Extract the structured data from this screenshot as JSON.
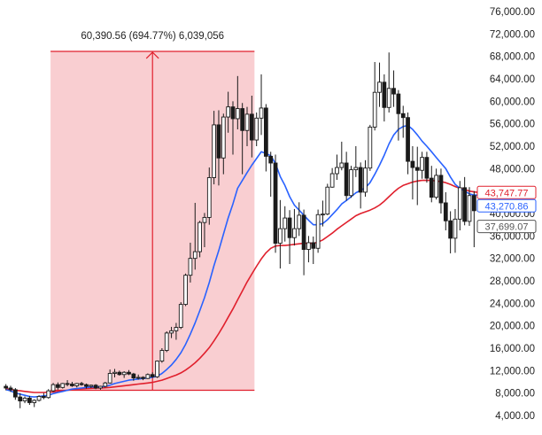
{
  "chart_data": {
    "type": "candlestick",
    "ylim": [
      3000,
      77000
    ],
    "y_ticks": [
      76000,
      72000,
      68000,
      64000,
      60000,
      56000,
      52000,
      48000,
      44000,
      40000,
      36000,
      32000,
      28000,
      24000,
      20000,
      16000,
      12000,
      8000,
      4000
    ],
    "y_tick_labels": [
      "76,000.00",
      "72,000.00",
      "68,000.00",
      "64,000.00",
      "60,000.00",
      "56,000.00",
      "52,000.00",
      "48,000.00",
      "44,000.00",
      "40,000.00",
      "36,000.00",
      "32,000.00",
      "28,000.00",
      "24,000.00",
      "20,000.00",
      "16,000.00",
      "12,000.00",
      "8,000.00",
      "4,000.00"
    ],
    "grid": false,
    "colors": {
      "up": "#ffffff",
      "down": "#1a1a1a",
      "outline": "#1a1a1a",
      "ema_blue": "#2962ff",
      "ma_red": "#e0202d",
      "measure_fill": "#f7b9bd",
      "measure_line": "#e0202d"
    },
    "candles": [
      [
        9200,
        9600,
        8500,
        8900
      ],
      [
        8900,
        9300,
        8200,
        8600
      ],
      [
        8600,
        8900,
        6800,
        7300
      ],
      [
        7300,
        8000,
        5300,
        6600
      ],
      [
        6600,
        7400,
        6200,
        7100
      ],
      [
        7100,
        7500,
        5900,
        6300
      ],
      [
        6300,
        6900,
        5500,
        6700
      ],
      [
        6700,
        7600,
        6500,
        7400
      ],
      [
        7400,
        8000,
        6900,
        7200
      ],
      [
        7200,
        8700,
        7000,
        8400
      ],
      [
        8400,
        9800,
        8200,
        9500
      ],
      [
        9500,
        9900,
        8600,
        9000
      ],
      [
        9000,
        9800,
        8800,
        9700
      ],
      [
        9700,
        10300,
        9200,
        9600
      ],
      [
        9600,
        10000,
        9100,
        9300
      ],
      [
        9300,
        9800,
        9000,
        9700
      ],
      [
        9700,
        10000,
        9300,
        9500
      ],
      [
        9500,
        9700,
        8800,
        9200
      ],
      [
        9200,
        9500,
        8900,
        9400
      ],
      [
        9400,
        9600,
        8700,
        8900
      ],
      [
        8900,
        9300,
        8600,
        9200
      ],
      [
        9200,
        10000,
        9000,
        9800
      ],
      [
        9800,
        12200,
        9700,
        11500
      ],
      [
        11500,
        12300,
        10800,
        11700
      ],
      [
        11700,
        12000,
        11100,
        11300
      ],
      [
        11300,
        11900,
        10700,
        11700
      ],
      [
        11700,
        12100,
        11200,
        11400
      ],
      [
        11400,
        11600,
        10200,
        10700
      ],
      [
        10700,
        11300,
        10400,
        10800
      ],
      [
        10800,
        11000,
        10300,
        10600
      ],
      [
        10600,
        11500,
        10500,
        11300
      ],
      [
        11300,
        11700,
        10700,
        10900
      ],
      [
        10900,
        13800,
        10700,
        13700
      ],
      [
        13700,
        16000,
        13400,
        15600
      ],
      [
        15600,
        19000,
        15300,
        18700
      ],
      [
        18700,
        19800,
        17800,
        19100
      ],
      [
        19100,
        20500,
        17500,
        19700
      ],
      [
        19700,
        24200,
        19400,
        23800
      ],
      [
        23800,
        29300,
        23500,
        29000
      ],
      [
        29000,
        34800,
        27700,
        32000
      ],
      [
        32000,
        41900,
        30000,
        33200
      ],
      [
        33200,
        38700,
        32200,
        38400
      ],
      [
        38400,
        40100,
        34000,
        39300
      ],
      [
        39300,
        48200,
        38000,
        46400
      ],
      [
        46400,
        58300,
        45200,
        55800
      ],
      [
        55800,
        58400,
        45000,
        49900
      ],
      [
        49900,
        57800,
        47000,
        57200
      ],
      [
        57200,
        61700,
        54400,
        59000
      ],
      [
        59000,
        60000,
        50500,
        56900
      ],
      [
        56900,
        64500,
        55000,
        58700
      ],
      [
        58700,
        59700,
        47000,
        54800
      ],
      [
        54800,
        59000,
        52000,
        57700
      ],
      [
        57700,
        61000,
        50000,
        53100
      ],
      [
        53100,
        58000,
        52000,
        57000
      ],
      [
        57000,
        64800,
        54000,
        58800
      ],
      [
        58800,
        59500,
        47500,
        50200
      ],
      [
        50200,
        51000,
        43000,
        49000
      ],
      [
        49000,
        50500,
        33000,
        34700
      ],
      [
        34700,
        42400,
        30200,
        37300
      ],
      [
        37300,
        41300,
        35000,
        39200
      ],
      [
        39200,
        40600,
        31000,
        35700
      ],
      [
        35700,
        40800,
        34300,
        37300
      ],
      [
        37300,
        42000,
        36000,
        39700
      ],
      [
        39700,
        40700,
        29000,
        33600
      ],
      [
        33600,
        36000,
        31300,
        34800
      ],
      [
        34800,
        35900,
        31000,
        33800
      ],
      [
        33800,
        40700,
        33000,
        39800
      ],
      [
        39800,
        42300,
        37700,
        39900
      ],
      [
        39900,
        45300,
        39700,
        44700
      ],
      [
        44700,
        48100,
        44600,
        47100
      ],
      [
        47100,
        50500,
        46000,
        48200
      ],
      [
        48200,
        52800,
        47700,
        49000
      ],
      [
        49000,
        51000,
        42300,
        43200
      ],
      [
        43200,
        48500,
        42800,
        47800
      ],
      [
        47800,
        52000,
        46500,
        48200
      ],
      [
        48200,
        49100,
        40900,
        43800
      ],
      [
        43800,
        49500,
        43000,
        48100
      ],
      [
        48100,
        55800,
        47600,
        55400
      ],
      [
        55400,
        67000,
        54800,
        61600
      ],
      [
        61600,
        66900,
        59000,
        63400
      ],
      [
        63400,
        64800,
        56400,
        58900
      ],
      [
        58900,
        68700,
        58000,
        62300
      ],
      [
        62300,
        65500,
        59000,
        61300
      ],
      [
        61300,
        62000,
        53000,
        57800
      ],
      [
        57800,
        59200,
        53500,
        57100
      ],
      [
        57100,
        58000,
        47000,
        49300
      ],
      [
        49300,
        52000,
        42500,
        48200
      ],
      [
        48200,
        51900,
        41500,
        47700
      ],
      [
        47700,
        51000,
        46200,
        50000
      ],
      [
        50000,
        51000,
        45500,
        46300
      ],
      [
        46300,
        48500,
        42000,
        42900
      ],
      [
        42900,
        48000,
        42500,
        46800
      ],
      [
        46800,
        48000,
        40000,
        41900
      ],
      [
        41900,
        43800,
        37000,
        38700
      ],
      [
        38700,
        40400,
        32900,
        35600
      ],
      [
        35600,
        40800,
        33000,
        39000
      ],
      [
        39000,
        45800,
        37000,
        44600
      ],
      [
        44600,
        46500,
        37900,
        38600
      ],
      [
        38600,
        44700,
        37800,
        43200
      ],
      [
        43200,
        44000,
        34000,
        40500
      ]
    ],
    "ema_blue": [
      8600,
      8400,
      8000,
      7800,
      7600,
      7400,
      7300,
      7400,
      7500,
      7600,
      7900,
      8100,
      8300,
      8500,
      8700,
      8800,
      8900,
      9000,
      9100,
      9100,
      9100,
      9200,
      9400,
      9700,
      9900,
      10100,
      10300,
      10400,
      10500,
      10600,
      10700,
      10800,
      11000,
      11500,
      12200,
      13000,
      14000,
      15200,
      16700,
      18500,
      20500,
      22700,
      25000,
      27700,
      30700,
      33400,
      36300,
      39200,
      41700,
      44500,
      45900,
      47300,
      48600,
      49800,
      51000,
      50700,
      50300,
      48900,
      46600,
      45000,
      43000,
      41500,
      40600,
      39700,
      38800,
      38000,
      38000,
      38200,
      38900,
      39800,
      40700,
      41700,
      42300,
      43000,
      43700,
      44100,
      44600,
      45500,
      47000,
      48600,
      50400,
      52400,
      54000,
      55000,
      55500,
      55700,
      55000,
      54000,
      52900,
      52000,
      51000,
      50000,
      49000,
      48000,
      46500,
      45200,
      44500,
      44000,
      43500,
      43300,
      43270
    ],
    "ma_red": [
      8700,
      8650,
      8500,
      8400,
      8300,
      8200,
      8100,
      8100,
      8100,
      8150,
      8200,
      8300,
      8400,
      8500,
      8600,
      8700,
      8750,
      8800,
      8850,
      8900,
      8900,
      8950,
      9000,
      9100,
      9200,
      9300,
      9400,
      9500,
      9600,
      9700,
      9800,
      9900,
      10100,
      10300,
      10600,
      10900,
      11200,
      11600,
      12100,
      12700,
      13400,
      14200,
      15100,
      16100,
      17300,
      18600,
      20000,
      21500,
      23000,
      24600,
      26200,
      27800,
      29200,
      30600,
      31900,
      33000,
      33800,
      34200,
      34300,
      34300,
      34400,
      34500,
      34600,
      34700,
      34700,
      34700,
      34900,
      35300,
      35900,
      36500,
      37200,
      37800,
      38400,
      39000,
      39600,
      40000,
      40300,
      40600,
      41000,
      41500,
      42200,
      43000,
      43800,
      44500,
      45000,
      45300,
      45600,
      45800,
      45900,
      45900,
      45900,
      45800,
      45700,
      45500,
      45200,
      44800,
      44500,
      44300,
      44000,
      43850,
      43747
    ],
    "measure": {
      "label": "60,390.56 (694.77%) 6,039,056",
      "start_index": 10,
      "end_index": 52,
      "low": 8500,
      "high": 68900
    },
    "price_tags": [
      {
        "label": "43,747.77",
        "value": 43747.77,
        "color": "#e0202d"
      },
      {
        "label": "43,270.86",
        "value": 43270.86,
        "color": "#2962ff"
      },
      {
        "label": "37,699.07",
        "value": 37699.07,
        "color": "#555555"
      }
    ]
  }
}
